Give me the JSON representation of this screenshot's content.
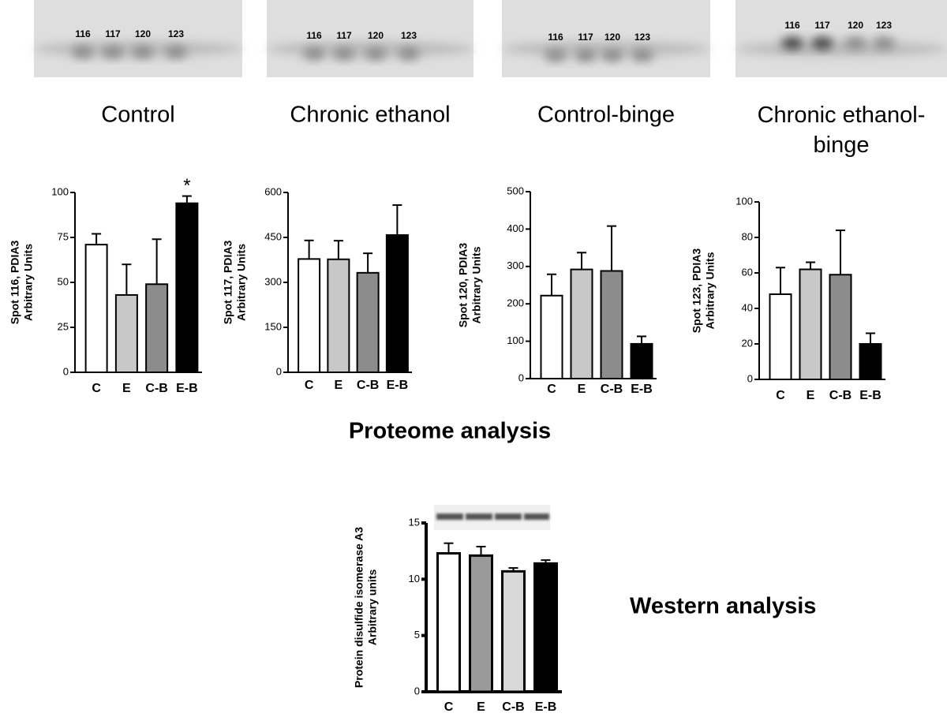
{
  "gels": [
    {
      "title": "Control",
      "spots": [
        "116",
        "117",
        "120",
        "123"
      ]
    },
    {
      "title": "Chronic ethanol",
      "spots": [
        "116",
        "117",
        "120",
        "123"
      ]
    },
    {
      "title": "Control-binge",
      "spots": [
        "116",
        "117",
        "120",
        "123"
      ]
    },
    {
      "title": "Chronic ethanol-binge",
      "spots": [
        "116",
        "117",
        "120",
        "123"
      ]
    }
  ],
  "section_labels": {
    "proteome": "Proteome analysis",
    "western": "Western analysis"
  },
  "chart_data": [
    {
      "type": "bar",
      "ylabel": [
        "Spot 116, PDIA3",
        "Arbitrary Units"
      ],
      "categories": [
        "C",
        "E",
        "C-B",
        "E-B"
      ],
      "values": [
        71,
        43,
        49,
        94
      ],
      "errors": [
        6,
        17,
        25,
        4
      ],
      "colors": [
        "#ffffff",
        "#c8c8c8",
        "#8c8c8c",
        "#000000"
      ],
      "ylim": [
        0,
        100
      ],
      "yticks": [
        0,
        25,
        50,
        75,
        100
      ],
      "annotation": "*"
    },
    {
      "type": "bar",
      "ylabel": [
        "Spot 117, PDIA3",
        "Arbitrary Units"
      ],
      "categories": [
        "C",
        "E",
        "C-B",
        "E-B"
      ],
      "values": [
        378,
        377,
        332,
        458
      ],
      "errors": [
        62,
        62,
        65,
        100
      ],
      "colors": [
        "#ffffff",
        "#c8c8c8",
        "#8c8c8c",
        "#000000"
      ],
      "ylim": [
        0,
        600
      ],
      "yticks": [
        0,
        150,
        300,
        450,
        600
      ]
    },
    {
      "type": "bar",
      "ylabel": [
        "Spot 120, PDIA3",
        "Arbitrary Units"
      ],
      "categories": [
        "C",
        "E",
        "C-B",
        "E-B"
      ],
      "values": [
        222,
        292,
        288,
        93
      ],
      "errors": [
        57,
        45,
        120,
        20
      ],
      "colors": [
        "#ffffff",
        "#c8c8c8",
        "#8c8c8c",
        "#000000"
      ],
      "ylim": [
        0,
        500
      ],
      "yticks": [
        0,
        100,
        200,
        300,
        400,
        500
      ]
    },
    {
      "type": "bar",
      "ylabel": [
        "Spot 123, PDIA3",
        "Arbitrary Units"
      ],
      "categories": [
        "C",
        "E",
        "C-B",
        "E-B"
      ],
      "values": [
        48,
        62,
        59,
        20
      ],
      "errors": [
        15,
        4,
        25,
        6
      ],
      "colors": [
        "#ffffff",
        "#c8c8c8",
        "#8c8c8c",
        "#000000"
      ],
      "ylim": [
        0,
        100
      ],
      "yticks": [
        0,
        20,
        40,
        60,
        80,
        100
      ]
    },
    {
      "type": "bar",
      "ylabel": [
        "Protein disulfide isomerase A3",
        "Arbitrary units"
      ],
      "categories": [
        "C",
        "E",
        "C-B",
        "E-B"
      ],
      "values": [
        12.3,
        12.1,
        10.7,
        11.4
      ],
      "errors": [
        0.9,
        0.8,
        0.3,
        0.3
      ],
      "colors": [
        "#ffffff",
        "#9a9a9a",
        "#d8d8d8",
        "#000000"
      ],
      "ylim": [
        0,
        15
      ],
      "yticks": [
        0,
        5,
        10,
        15
      ]
    }
  ]
}
